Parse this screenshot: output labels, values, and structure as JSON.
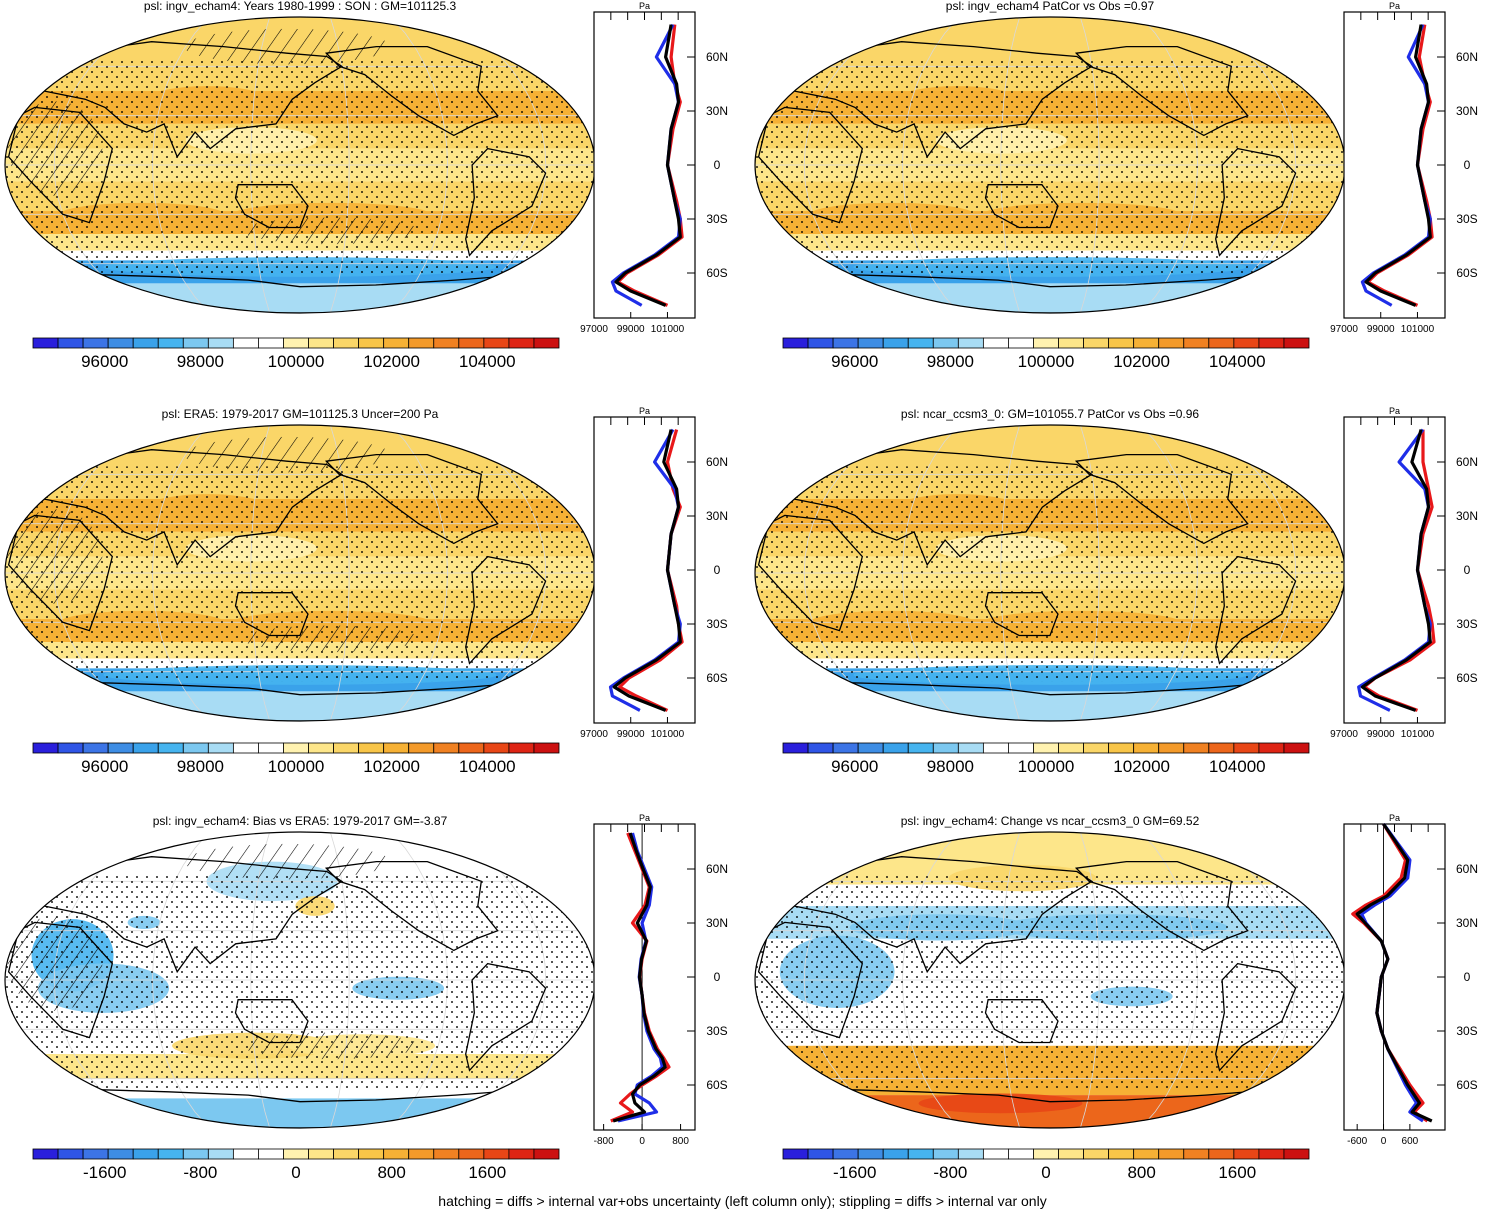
{
  "figure": {
    "caption": "hatching = diffs > internal var+obs uncertainty (left column only); stippling = diffs > internal var only",
    "colors": {
      "scale": [
        "#2a1fdc",
        "#2f55e6",
        "#3c74e6",
        "#3e8de4",
        "#3aa2ea",
        "#46b4ef",
        "#7cc8f0",
        "#a8dcf4",
        "#ffffff",
        "#ffffff",
        "#fff2b0",
        "#fde68a",
        "#fad668",
        "#f8c548",
        "#f6b135",
        "#f39a2a",
        "#f08122",
        "#ec661b",
        "#e84616",
        "#de2414",
        "#cc1111"
      ],
      "land_outline": "#000000",
      "model_line": "#e8181a",
      "obs_line": "#1f2ee8",
      "ref_line": "#000000"
    }
  },
  "chart_data": [
    {
      "type": "heatmap",
      "projection": "robinson",
      "title": "psl: ingv_echam4: Years 1980-1999 : SON : GM=101125.3",
      "field": "mean",
      "colorbar": {
        "ticks": [
          "96000",
          "98000",
          "100000",
          "102000",
          "104000"
        ],
        "range": [
          94500,
          105500
        ],
        "nlevels": 21
      },
      "profile": {
        "units": "Pa",
        "lat_ticks": [
          "60N",
          "30N",
          "0",
          "30S",
          "60S"
        ],
        "x_ticks": [
          "97000",
          "99000",
          "101000"
        ],
        "xlim": [
          97000,
          102500
        ],
        "series": [
          {
            "name": "model",
            "color": "red",
            "lat": [
              78,
              60,
              45,
              35,
              20,
              0,
              -20,
              -30,
              -40,
              -50,
              -60,
              -65,
              -70,
              -78
            ],
            "values": [
              101400,
              101200,
              101400,
              101700,
              101300,
              101000,
              101500,
              101700,
              101800,
              100500,
              98800,
              98300,
              99200,
              101000
            ]
          },
          {
            "name": "obs",
            "color": "blue",
            "lat": [
              78,
              60,
              45,
              35,
              20,
              0,
              -20,
              -30,
              -40,
              -50,
              -60,
              -65,
              -70,
              -78
            ],
            "values": [
              101300,
              100400,
              101400,
              101600,
              101200,
              101000,
              101400,
              101700,
              101600,
              100300,
              98600,
              98000,
              98200,
              99600
            ]
          },
          {
            "name": "ref",
            "color": "black",
            "lat": [
              78,
              60,
              45,
              35,
              20,
              0,
              -20,
              -30,
              -40,
              -50,
              -60,
              -65,
              -70,
              -78
            ],
            "values": [
              101200,
              100900,
              101500,
              101600,
              101200,
              101000,
              101400,
              101600,
              101700,
              100400,
              98700,
              98200,
              99000,
              100900
            ]
          }
        ]
      }
    },
    {
      "type": "heatmap",
      "projection": "robinson",
      "title": "psl: ingv_echam4 PatCor vs Obs =0.97",
      "field": "mean",
      "colorbar": {
        "ticks": [
          "96000",
          "98000",
          "100000",
          "102000",
          "104000"
        ],
        "range": [
          94500,
          105500
        ],
        "nlevels": 21
      },
      "profile": {
        "units": "Pa",
        "lat_ticks": [
          "60N",
          "30N",
          "0",
          "30S",
          "60S"
        ],
        "x_ticks": [
          "97000",
          "99000",
          "101000"
        ],
        "xlim": [
          97000,
          102500
        ],
        "series": [
          {
            "name": "model",
            "color": "red",
            "lat": [
              78,
              60,
              45,
              35,
              20,
              0,
              -20,
              -30,
              -40,
              -50,
              -60,
              -65,
              -70,
              -78
            ],
            "values": [
              101400,
              101100,
              101400,
              101700,
              101300,
              101000,
              101500,
              101700,
              101800,
              100500,
              98800,
              98300,
              99200,
              101000
            ]
          },
          {
            "name": "obs",
            "color": "blue",
            "lat": [
              78,
              60,
              45,
              35,
              20,
              0,
              -20,
              -30,
              -40,
              -50,
              -60,
              -65,
              -70,
              -78
            ],
            "values": [
              101300,
              100500,
              101400,
              101600,
              101200,
              101000,
              101400,
              101700,
              101600,
              100300,
              98600,
              98000,
              98200,
              99600
            ]
          },
          {
            "name": "ref",
            "color": "black",
            "lat": [
              78,
              60,
              45,
              35,
              20,
              0,
              -20,
              -30,
              -40,
              -50,
              -60,
              -65,
              -70,
              -78
            ],
            "values": [
              101200,
              100900,
              101500,
              101600,
              101200,
              101000,
              101400,
              101600,
              101700,
              100400,
              98700,
              98200,
              99000,
              100900
            ]
          }
        ]
      }
    },
    {
      "type": "heatmap",
      "projection": "robinson",
      "title": "psl: ERA5: 1979-2017 GM=101125.3 Uncer=200 Pa",
      "field": "mean",
      "colorbar": {
        "ticks": [
          "96000",
          "98000",
          "100000",
          "102000",
          "104000"
        ],
        "range": [
          94500,
          105500
        ],
        "nlevels": 21
      },
      "profile": {
        "units": "Pa",
        "lat_ticks": [
          "60N",
          "30N",
          "0",
          "30S",
          "60S"
        ],
        "x_ticks": [
          "97000",
          "99000",
          "101000"
        ],
        "xlim": [
          97000,
          102500
        ],
        "series": [
          {
            "name": "model",
            "color": "red",
            "lat": [
              78,
              60,
              45,
              35,
              20,
              0,
              -20,
              -30,
              -40,
              -50,
              -60,
              -65,
              -70,
              -78
            ],
            "values": [
              101500,
              101000,
              101300,
              101700,
              101200,
              101000,
              101500,
              101600,
              101800,
              100600,
              98900,
              98400,
              99300,
              101000
            ]
          },
          {
            "name": "obs",
            "color": "blue",
            "lat": [
              78,
              60,
              45,
              35,
              20,
              0,
              -20,
              -30,
              -40,
              -50,
              -60,
              -65,
              -70,
              -78
            ],
            "values": [
              101300,
              100300,
              101400,
              101600,
              101200,
              101000,
              101400,
              101700,
              101600,
              100300,
              98600,
              97900,
              98000,
              99500
            ]
          },
          {
            "name": "ref",
            "color": "black",
            "lat": [
              78,
              60,
              45,
              35,
              20,
              0,
              -20,
              -30,
              -40,
              -50,
              -60,
              -65,
              -70,
              -78
            ],
            "values": [
              101200,
              100800,
              101500,
              101600,
              101200,
              101000,
              101400,
              101600,
              101700,
              100400,
              98700,
              98100,
              98900,
              100900
            ]
          }
        ]
      }
    },
    {
      "type": "heatmap",
      "projection": "robinson",
      "title": "psl: ncar_ccsm3_0: GM=101055.7 PatCor vs Obs =0.96",
      "field": "mean",
      "colorbar": {
        "ticks": [
          "96000",
          "98000",
          "100000",
          "102000",
          "104000"
        ],
        "range": [
          94500,
          105500
        ],
        "nlevels": 21
      },
      "profile": {
        "units": "Pa",
        "lat_ticks": [
          "60N",
          "30N",
          "0",
          "30S",
          "60S"
        ],
        "x_ticks": [
          "97000",
          "99000",
          "101000"
        ],
        "xlim": [
          97000,
          102500
        ],
        "series": [
          {
            "name": "model",
            "color": "red",
            "lat": [
              78,
              60,
              45,
              35,
              20,
              0,
              -20,
              -30,
              -40,
              -50,
              -60,
              -65,
              -70,
              -78
            ],
            "values": [
              101300,
              101300,
              101600,
              101800,
              101300,
              101000,
              101600,
              101800,
              101900,
              100600,
              98700,
              98100,
              98900,
              101000
            ]
          },
          {
            "name": "obs",
            "color": "blue",
            "lat": [
              78,
              60,
              45,
              35,
              20,
              0,
              -20,
              -30,
              -40,
              -50,
              -60,
              -65,
              -70,
              -78
            ],
            "values": [
              101300,
              100000,
              101400,
              101600,
              101200,
              101000,
              101400,
              101700,
              101600,
              100300,
              98600,
              97800,
              97900,
              99500
            ]
          },
          {
            "name": "ref",
            "color": "black",
            "lat": [
              78,
              60,
              45,
              35,
              20,
              0,
              -20,
              -30,
              -40,
              -50,
              -60,
              -65,
              -70,
              -78
            ],
            "values": [
              101200,
              100700,
              101500,
              101600,
              101200,
              101000,
              101400,
              101600,
              101700,
              100400,
              98700,
              98000,
              98700,
              100900
            ]
          }
        ]
      }
    },
    {
      "type": "heatmap",
      "projection": "robinson",
      "title": "psl: ingv_echam4: Bias vs ERA5: 1979-2017  GM=-3.87",
      "field": "bias",
      "colorbar": {
        "ticks": [
          "-1600",
          "-800",
          "0",
          "800",
          "1600"
        ],
        "range": [
          -2200,
          2200
        ],
        "nlevels": 21
      },
      "profile": {
        "units": "Pa",
        "lat_ticks": [
          "60N",
          "30N",
          "0",
          "30S",
          "60S"
        ],
        "x_ticks": [
          "-800",
          "0",
          "800"
        ],
        "xlim": [
          -1000,
          1100
        ],
        "series": [
          {
            "name": "model",
            "color": "red",
            "lat": [
              80,
              70,
              60,
              50,
              40,
              30,
              20,
              10,
              0,
              -10,
              -20,
              -30,
              -40,
              -45,
              -50,
              -55,
              -60,
              -65,
              -70,
              -75,
              -80
            ],
            "values": [
              -300,
              -150,
              0,
              150,
              60,
              -200,
              100,
              0,
              -50,
              0,
              50,
              150,
              320,
              450,
              560,
              300,
              0,
              -250,
              -450,
              -200,
              -650
            ]
          },
          {
            "name": "obs",
            "color": "blue",
            "lat": [
              80,
              70,
              60,
              50,
              40,
              30,
              20,
              10,
              0,
              -10,
              -20,
              -30,
              -40,
              -45,
              -50,
              -55,
              -60,
              -65,
              -70,
              -75,
              -80
            ],
            "values": [
              -200,
              -100,
              50,
              200,
              150,
              0,
              80,
              -20,
              -60,
              0,
              30,
              100,
              250,
              380,
              420,
              200,
              -100,
              -150,
              150,
              300,
              -500
            ]
          },
          {
            "name": "ref",
            "color": "black",
            "lat": [
              80,
              70,
              60,
              50,
              40,
              30,
              20,
              10,
              0,
              -10,
              -20,
              -30,
              -40,
              -45,
              -50,
              -55,
              -60,
              -65,
              -70,
              -75,
              -80
            ],
            "values": [
              -250,
              -120,
              20,
              170,
              100,
              -100,
              90,
              -10,
              -55,
              0,
              40,
              130,
              290,
              420,
              480,
              250,
              -50,
              -200,
              -150,
              50,
              -600
            ]
          }
        ]
      }
    },
    {
      "type": "heatmap",
      "projection": "robinson",
      "title": "psl: ingv_echam4: Change vs ncar_ccsm3_0 GM=69.52",
      "field": "change",
      "colorbar": {
        "ticks": [
          "-1600",
          "-800",
          "0",
          "800",
          "1600"
        ],
        "range": [
          -2200,
          2200
        ],
        "nlevels": 21
      },
      "profile": {
        "units": "Pa",
        "lat_ticks": [
          "60N",
          "30N",
          "0",
          "30S",
          "60S"
        ],
        "x_ticks": [
          "-600",
          "0",
          "600"
        ],
        "xlim": [
          -900,
          1400
        ],
        "series": [
          {
            "name": "model",
            "color": "red",
            "lat": [
              85,
              75,
              65,
              55,
              45,
              40,
              35,
              30,
              20,
              10,
              0,
              -10,
              -20,
              -30,
              -40,
              -50,
              -60,
              -70,
              -75,
              -80
            ],
            "values": [
              0,
              250,
              500,
              400,
              0,
              -400,
              -700,
              -450,
              -50,
              100,
              -50,
              -100,
              -150,
              -50,
              100,
              350,
              600,
              900,
              700,
              1000
            ]
          },
          {
            "name": "obs",
            "color": "blue",
            "lat": [
              85,
              75,
              65,
              55,
              45,
              40,
              35,
              30,
              20,
              10,
              0,
              -10,
              -20,
              -30,
              -40,
              -50,
              -60,
              -70,
              -75,
              -80
            ],
            "values": [
              0,
              300,
              600,
              550,
              150,
              -200,
              -500,
              -400,
              -50,
              100,
              -50,
              -100,
              -150,
              -50,
              100,
              300,
              500,
              750,
              600,
              900
            ]
          },
          {
            "name": "ref",
            "color": "black",
            "lat": [
              85,
              75,
              65,
              55,
              45,
              40,
              35,
              30,
              20,
              10,
              0,
              -10,
              -20,
              -30,
              -40,
              -50,
              -60,
              -70,
              -75,
              -80
            ],
            "values": [
              0,
              280,
              550,
              480,
              80,
              -300,
              -600,
              -420,
              -50,
              100,
              -50,
              -100,
              -150,
              -50,
              100,
              320,
              550,
              820,
              650,
              1100
            ]
          }
        ]
      }
    }
  ]
}
